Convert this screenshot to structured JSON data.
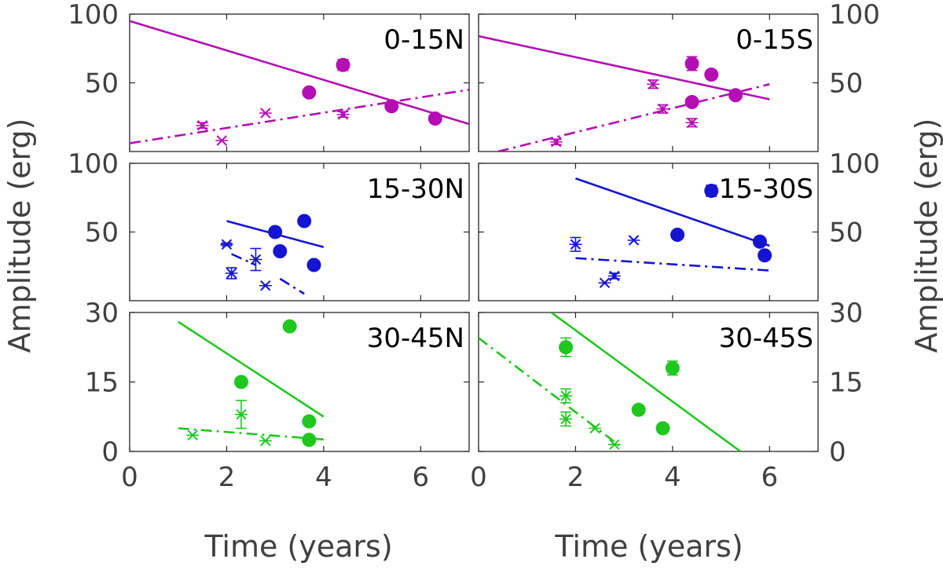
{
  "chart_data": {
    "type": "scatter",
    "xlabel": "Time (years)",
    "ylabel": "Amplitude (erg)",
    "xlim": [
      0,
      7
    ],
    "xticks": [
      "0",
      "2",
      "4",
      "6"
    ],
    "legend": "none",
    "colors": {
      "row0": "#b40fb4",
      "row1": "#1414d2",
      "row2": "#1ec81e"
    },
    "panels": [
      {
        "id": "0-15N",
        "label": "0-15N",
        "row": 0,
        "col": 0,
        "color": "#b40fb4",
        "ylim": [
          0,
          100
        ],
        "yticks": [
          "100",
          "50"
        ],
        "circles": [
          [
            3.7,
            43,
            0
          ],
          [
            4.4,
            63,
            4
          ],
          [
            5.4,
            33,
            0
          ],
          [
            6.3,
            24,
            0
          ]
        ],
        "crosses": [
          [
            1.5,
            19,
            2
          ],
          [
            1.9,
            8,
            0
          ],
          [
            2.8,
            28,
            0
          ],
          [
            4.4,
            27,
            2
          ]
        ],
        "solid_line": [
          [
            0,
            95
          ],
          [
            7,
            20
          ]
        ],
        "dashdot_line": [
          [
            0,
            6
          ],
          [
            7,
            45
          ]
        ]
      },
      {
        "id": "0-15S",
        "label": "0-15S",
        "row": 0,
        "col": 1,
        "color": "#b40fb4",
        "ylim": [
          0,
          100
        ],
        "yticks": [
          "100",
          "50"
        ],
        "circles": [
          [
            4.4,
            64,
            5
          ],
          [
            4.8,
            56,
            3
          ],
          [
            4.4,
            36,
            0
          ],
          [
            5.3,
            41,
            0
          ]
        ],
        "crosses": [
          [
            1.6,
            7,
            2
          ],
          [
            3.6,
            49,
            3
          ],
          [
            3.8,
            31,
            3
          ],
          [
            4.4,
            21,
            3
          ]
        ],
        "solid_line": [
          [
            0,
            84
          ],
          [
            6,
            38
          ]
        ],
        "dashdot_line": [
          [
            0.4,
            0
          ],
          [
            6,
            49
          ]
        ]
      },
      {
        "id": "15-30N",
        "label": "15-30N",
        "row": 1,
        "col": 0,
        "color": "#1414d2",
        "ylim": [
          0,
          100
        ],
        "yticks": [
          "100",
          "50"
        ],
        "circles": [
          [
            3.0,
            50,
            0
          ],
          [
            3.6,
            58,
            0
          ],
          [
            3.1,
            36,
            0
          ],
          [
            3.8,
            26,
            0
          ]
        ],
        "crosses": [
          [
            2.0,
            41,
            1
          ],
          [
            2.1,
            20,
            4
          ],
          [
            2.6,
            30,
            8
          ],
          [
            2.8,
            11,
            0
          ]
        ],
        "solid_line": [
          [
            2,
            58
          ],
          [
            4,
            39
          ]
        ],
        "dashdot_line_segments": [
          [
            [
              2.1,
              34
            ],
            [
              2.6,
              26
            ]
          ],
          [
            [
              3.1,
              16
            ],
            [
              3.6,
              5
            ]
          ]
        ]
      },
      {
        "id": "15-30S",
        "label": "15-30S",
        "row": 1,
        "col": 1,
        "color": "#1414d2",
        "ylim": [
          0,
          100
        ],
        "yticks": [
          "100",
          "50"
        ],
        "circles": [
          [
            4.8,
            80,
            4
          ],
          [
            4.1,
            48,
            0
          ],
          [
            5.8,
            43,
            0
          ],
          [
            5.9,
            33,
            0
          ]
        ],
        "crosses": [
          [
            2.0,
            41,
            5
          ],
          [
            2.6,
            13,
            0
          ],
          [
            2.8,
            18,
            2
          ],
          [
            3.2,
            44,
            0
          ]
        ],
        "solid_line": [
          [
            2,
            89
          ],
          [
            6,
            40
          ]
        ],
        "dashdot_line": [
          [
            2,
            31
          ],
          [
            6,
            22
          ]
        ]
      },
      {
        "id": "30-45N",
        "label": "30-45N",
        "row": 2,
        "col": 0,
        "color": "#1ec81e",
        "ylim": [
          0,
          30
        ],
        "yticks": [
          "30",
          "15",
          "0"
        ],
        "circles": [
          [
            3.3,
            27,
            0
          ],
          [
            2.3,
            15,
            0
          ],
          [
            3.7,
            6.5,
            0
          ],
          [
            3.7,
            2.5,
            0
          ]
        ],
        "crosses": [
          [
            1.3,
            3.5,
            0
          ],
          [
            2.3,
            8,
            3
          ],
          [
            2.8,
            2.3,
            0
          ]
        ],
        "solid_line": [
          [
            1,
            28
          ],
          [
            4,
            7.5
          ]
        ],
        "dashdot_line": [
          [
            1,
            5
          ],
          [
            4,
            2.6
          ]
        ]
      },
      {
        "id": "30-45S",
        "label": "30-45S",
        "row": 2,
        "col": 1,
        "color": "#1ec81e",
        "ylim": [
          0,
          30
        ],
        "yticks": [
          "30",
          "15",
          "0"
        ],
        "circles": [
          [
            1.8,
            22.5,
            2
          ],
          [
            4.0,
            18,
            1.5
          ],
          [
            3.3,
            9,
            0
          ],
          [
            3.8,
            5,
            0
          ]
        ],
        "crosses": [
          [
            1.8,
            12,
            1.5
          ],
          [
            1.8,
            7,
            1.5
          ],
          [
            2.4,
            5,
            0
          ],
          [
            2.8,
            1.5,
            0
          ]
        ],
        "solid_line": [
          [
            1.5,
            30
          ],
          [
            5.4,
            0
          ]
        ],
        "dashdot_line": [
          [
            0,
            24.5
          ],
          [
            2.9,
            1.3
          ]
        ]
      }
    ]
  }
}
